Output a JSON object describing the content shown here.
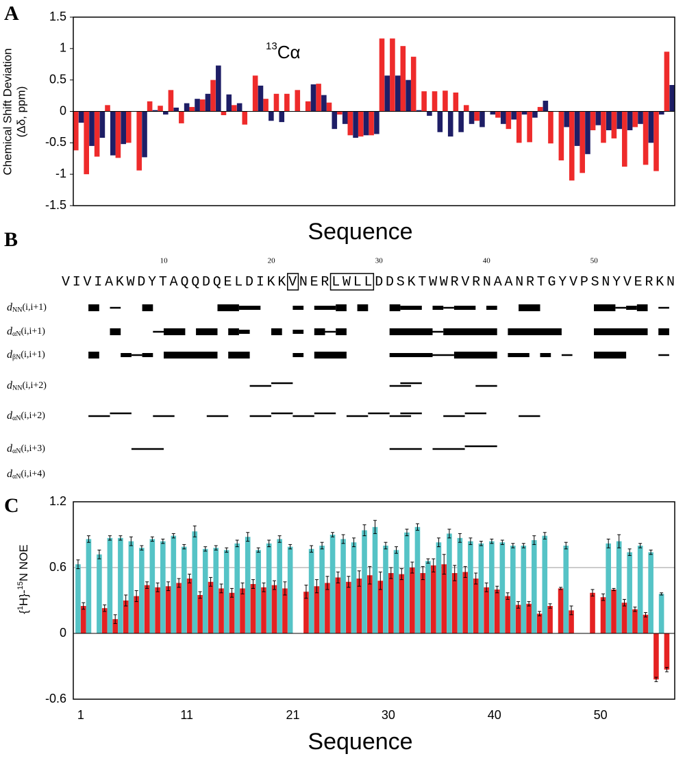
{
  "chart_data": [
    {
      "type": "bar",
      "panel": "A",
      "annotation": {
        "sup": "13",
        "text": "Cα"
      },
      "ylabel": [
        "Chemical Shift Deviation",
        "(Δδ, ppm)"
      ],
      "xlabel": "Sequence",
      "ylim": [
        -1.5,
        1.5
      ],
      "yticks": [
        -1.5,
        -1,
        -0.5,
        0,
        0.5,
        1,
        1.5
      ],
      "series": [
        {
          "color": "#ee2b2b",
          "values": [
            -0.62,
            -1,
            -0.72,
            0.1,
            -0.74,
            -0.5,
            -0.94,
            0.16,
            0.09,
            0.34,
            -0.19,
            0.07,
            0.19,
            0.5,
            -0.06,
            0.1,
            -0.21,
            0.57,
            0.2,
            0.28,
            0.28,
            0.34,
            0.16,
            0.44,
            0.14,
            -0.05,
            -0.38,
            -0.4,
            -0.38,
            1.16,
            1.16,
            1.04,
            0.87,
            0.32,
            0.32,
            0.33,
            0.3,
            0.1,
            -0.15,
            0,
            -0.1,
            -0.28,
            -0.5,
            -0.49,
            0.07,
            -0.51,
            -0.78,
            -1.1,
            -0.98,
            -0.3,
            -0.5,
            -0.43,
            -0.88,
            -0.25,
            -0.85,
            -0.95,
            0.95
          ]
        },
        {
          "color": "#1e1e66",
          "values": [
            -0.18,
            -0.55,
            -0.42,
            -0.7,
            -0.52,
            null,
            -0.73,
            0.02,
            -0.05,
            0.06,
            0.13,
            0.2,
            0.28,
            0.73,
            0.27,
            0.13,
            null,
            0.41,
            -0.15,
            -0.17,
            0,
            0,
            0.43,
            0.26,
            -0.28,
            -0.2,
            -0.42,
            -0.38,
            -0.36,
            0.57,
            0.57,
            0.5,
            0.02,
            -0.07,
            -0.33,
            -0.4,
            -0.33,
            -0.2,
            -0.25,
            -0.05,
            -0.2,
            -0.13,
            -0.05,
            -0.1,
            0.17,
            0,
            -0.25,
            -0.55,
            -0.68,
            -0.22,
            -0.3,
            -0.28,
            -0.3,
            -0.2,
            -0.5,
            -0.05,
            0.42
          ]
        }
      ]
    },
    {
      "type": "noe_connectivity",
      "panel": "B",
      "sequence": "VIVIAKWDYTAQQDQELDIKKVNERLWLLDDSKTWWRVRNAANRTGYVPSNYVERKN",
      "numbering": [
        10,
        20,
        30,
        40,
        50
      ],
      "boxed": [
        [
          22,
          22
        ],
        [
          26,
          29
        ]
      ],
      "rows": [
        {
          "label": [
            "d",
            "NN",
            "(i,i+1)"
          ],
          "segments": [
            [
              3,
              4,
              3
            ],
            [
              5,
              6,
              1
            ],
            [
              8,
              9,
              3
            ],
            [
              15,
              17,
              3
            ],
            [
              17,
              19,
              2
            ],
            [
              22,
              23,
              2
            ],
            [
              24,
              26,
              2
            ],
            [
              26,
              27,
              3
            ],
            [
              28,
              29,
              3
            ],
            [
              31,
              32,
              3
            ],
            [
              32,
              34,
              2
            ],
            [
              35,
              36,
              2
            ],
            [
              36,
              37,
              1
            ],
            [
              37,
              39,
              2
            ],
            [
              40,
              41,
              2
            ],
            [
              43,
              45,
              3
            ],
            [
              50,
              52,
              3
            ],
            [
              52,
              53,
              1
            ],
            [
              53,
              54,
              2
            ],
            [
              54,
              55,
              3
            ],
            [
              56,
              57,
              1
            ]
          ]
        },
        {
          "label": [
            "d",
            "αN",
            "(i,i+1)"
          ],
          "segments": [
            [
              5,
              6,
              3
            ],
            [
              9,
              10,
              1
            ],
            [
              10,
              12,
              3
            ],
            [
              13,
              15,
              3
            ],
            [
              16,
              17,
              3
            ],
            [
              17,
              18,
              2
            ],
            [
              20,
              21,
              3
            ],
            [
              22,
              23,
              2
            ],
            [
              24,
              25,
              3
            ],
            [
              25,
              26,
              1
            ],
            [
              26,
              27,
              3
            ],
            [
              31,
              35,
              3
            ],
            [
              35,
              36,
              1
            ],
            [
              36,
              41,
              3
            ],
            [
              42,
              47,
              3
            ],
            [
              50,
              55,
              3
            ],
            [
              56,
              57,
              3
            ]
          ]
        },
        {
          "label": [
            "d",
            "βN",
            "(i,i+1)"
          ],
          "segments": [
            [
              3,
              4,
              3
            ],
            [
              6,
              7,
              2
            ],
            [
              7,
              8,
              1
            ],
            [
              8,
              9,
              2
            ],
            [
              10,
              15,
              3
            ],
            [
              16,
              18,
              3
            ],
            [
              22,
              23,
              2
            ],
            [
              24,
              27,
              3
            ],
            [
              31,
              35,
              2
            ],
            [
              35,
              37,
              1
            ],
            [
              37,
              41,
              3
            ],
            [
              42,
              44,
              2
            ],
            [
              45,
              46,
              2
            ],
            [
              47,
              48,
              1
            ],
            [
              50,
              53,
              3
            ],
            [
              56,
              57,
              1
            ]
          ]
        },
        {
          "label": [
            "d",
            "NN",
            "(i,i+2)"
          ],
          "segments": [
            [
              18,
              20,
              1
            ],
            [
              20,
              22,
              1
            ],
            [
              31,
              33,
              1
            ],
            [
              32,
              34,
              1
            ],
            [
              39,
              41,
              1
            ]
          ]
        },
        {
          "label": [
            "d",
            "αN",
            "(i,i+2)"
          ],
          "segments": [
            [
              3,
              5,
              1
            ],
            [
              5,
              7,
              1
            ],
            [
              9,
              11,
              1
            ],
            [
              14,
              16,
              1
            ],
            [
              18,
              20,
              1
            ],
            [
              20,
              22,
              1
            ],
            [
              22,
              24,
              1
            ],
            [
              24,
              26,
              1
            ],
            [
              27,
              29,
              1
            ],
            [
              29,
              31,
              1
            ],
            [
              31,
              33,
              1
            ],
            [
              32,
              34,
              1
            ],
            [
              36,
              38,
              1
            ],
            [
              38,
              40,
              1
            ],
            [
              43,
              45,
              1
            ]
          ]
        },
        {
          "label": [
            "d",
            "αN",
            "(i,i+3)"
          ],
          "segments": [
            [
              7,
              10,
              1
            ],
            [
              31,
              34,
              1
            ],
            [
              35,
              38,
              1
            ],
            [
              38,
              41,
              1
            ]
          ]
        },
        {
          "label": [
            "d",
            "αN",
            "(i,i+4)"
          ],
          "segments": []
        }
      ]
    },
    {
      "type": "bar",
      "panel": "C",
      "ylabel": [
        "{",
        "1",
        "H}-",
        "15",
        "N NOE"
      ],
      "xlabel": "Sequence",
      "xlim": [
        0.3,
        57
      ],
      "xticks": [
        1,
        11,
        21,
        30,
        40,
        50
      ],
      "ylim": [
        -0.6,
        1.2
      ],
      "yticks": [
        -0.6,
        0,
        0.6,
        1.2
      ],
      "grid": true,
      "x": [
        1,
        2,
        3,
        4,
        5,
        6,
        7,
        8,
        9,
        10,
        11,
        12,
        13,
        14,
        15,
        16,
        17,
        18,
        19,
        20,
        21,
        22,
        23,
        24,
        25,
        26,
        27,
        28,
        29,
        30,
        31,
        32,
        33,
        34,
        35,
        36,
        37,
        38,
        39,
        40,
        41,
        42,
        43,
        44,
        45,
        46,
        47,
        48,
        49,
        50,
        51,
        52,
        53,
        54,
        55,
        56
      ],
      "series": [
        {
          "color": "#55c3c6",
          "values": [
            0.63,
            0.86,
            0.72,
            0.87,
            0.87,
            0.84,
            0.78,
            0.86,
            0.84,
            0.89,
            0.79,
            0.93,
            0.77,
            0.78,
            0.76,
            0.82,
            0.88,
            0.76,
            0.82,
            0.86,
            0.79,
            null,
            0.77,
            0.8,
            0.9,
            0.86,
            0.83,
            0.94,
            0.97,
            0.8,
            0.76,
            0.92,
            0.97,
            0.66,
            0.83,
            0.91,
            0.87,
            0.84,
            0.82,
            0.84,
            0.83,
            0.8,
            0.8,
            0.85,
            0.89,
            null,
            0.8,
            null,
            null,
            null,
            0.82,
            0.84,
            0.74,
            0.8,
            0.74,
            0.36
          ],
          "errors": [
            0.04,
            0.03,
            0.04,
            0.02,
            0.02,
            0.04,
            0.02,
            0.02,
            0.02,
            0.02,
            0.02,
            0.05,
            0.02,
            0.02,
            0.02,
            0.03,
            0.04,
            0.02,
            0.03,
            0.03,
            0.02,
            null,
            0.03,
            0.03,
            0.02,
            0.04,
            0.04,
            0.05,
            0.06,
            0.03,
            0.03,
            0.03,
            0.03,
            0.02,
            0.04,
            0.04,
            0.04,
            0.03,
            0.02,
            0.02,
            0.02,
            0.02,
            0.02,
            0.04,
            0.03,
            null,
            0.03,
            null,
            null,
            null,
            0.04,
            0.06,
            0.03,
            0.02,
            0.02,
            0.01
          ]
        },
        {
          "color": "#e52222",
          "values": [
            0.25,
            null,
            0.23,
            0.13,
            0.3,
            0.34,
            0.44,
            0.42,
            0.43,
            0.46,
            0.5,
            0.35,
            0.47,
            0.41,
            0.37,
            0.41,
            0.45,
            0.42,
            0.44,
            0.41,
            null,
            0.38,
            0.43,
            0.46,
            0.51,
            0.47,
            0.5,
            0.53,
            0.48,
            0.55,
            0.54,
            0.6,
            0.55,
            0.62,
            0.63,
            0.55,
            0.56,
            0.5,
            0.42,
            0.4,
            0.34,
            0.26,
            0.27,
            0.18,
            0.25,
            0.41,
            0.21,
            null,
            0.37,
            0.33,
            0.4,
            0.28,
            0.22,
            0.17,
            -0.42,
            -0.33
          ],
          "errors": [
            0.03,
            null,
            0.03,
            0.04,
            0.05,
            0.05,
            0.03,
            0.04,
            0.04,
            0.04,
            0.04,
            0.03,
            0.04,
            0.04,
            0.04,
            0.05,
            0.04,
            0.04,
            0.04,
            0.06,
            null,
            0.06,
            0.06,
            0.06,
            0.05,
            0.05,
            0.07,
            0.08,
            0.08,
            0.05,
            0.05,
            0.05,
            0.06,
            0.06,
            0.09,
            0.07,
            0.05,
            0.05,
            0.04,
            0.03,
            0.03,
            0.03,
            0.02,
            0.02,
            0.02,
            0.01,
            0.04,
            null,
            0.03,
            0.03,
            0.01,
            0.03,
            0.02,
            0.02,
            0.02,
            0.02
          ]
        }
      ]
    }
  ]
}
